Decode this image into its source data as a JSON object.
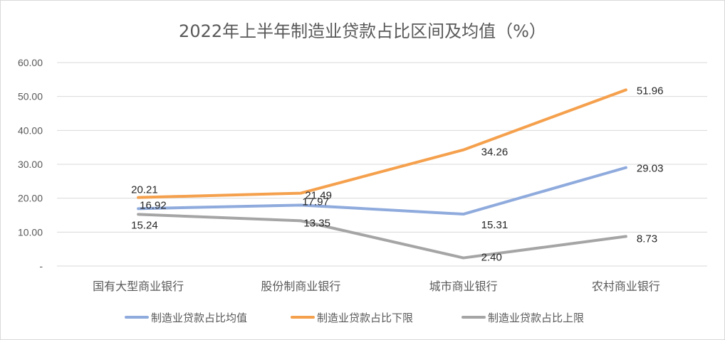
{
  "chart_data": {
    "type": "line",
    "title": "2022年上半年制造业贷款占比区间及均值（%）",
    "categories": [
      "国有大型商业银行",
      "股份制商业银行",
      "城市商业银行",
      "农村商业银行"
    ],
    "ylim": [
      0,
      60
    ],
    "yticks": [
      0,
      10,
      20,
      30,
      40,
      50,
      60
    ],
    "ytick_labels": [
      "-",
      "10.00",
      "20.00",
      "30.00",
      "40.00",
      "50.00",
      "60.00"
    ],
    "grid": true,
    "legend_position": "bottom",
    "series": [
      {
        "name": "制造业贷款占比均值",
        "color": "#8faadc",
        "values": [
          16.92,
          17.97,
          15.31,
          29.03
        ],
        "labels": [
          "16.92",
          "17.97",
          "15.31",
          "29.03"
        ]
      },
      {
        "name": "制造业贷款占比下限",
        "color": "#f4a04c",
        "values": [
          20.21,
          21.49,
          34.26,
          51.96
        ],
        "labels": [
          "20.21",
          "21.49",
          "34.26",
          "51.96"
        ]
      },
      {
        "name": "制造业贷款占比上限",
        "color": "#a5a5a5",
        "values": [
          15.24,
          13.35,
          2.4,
          8.73
        ],
        "labels": [
          "15.24",
          "13.35",
          "2.40",
          "8.73"
        ]
      }
    ]
  }
}
